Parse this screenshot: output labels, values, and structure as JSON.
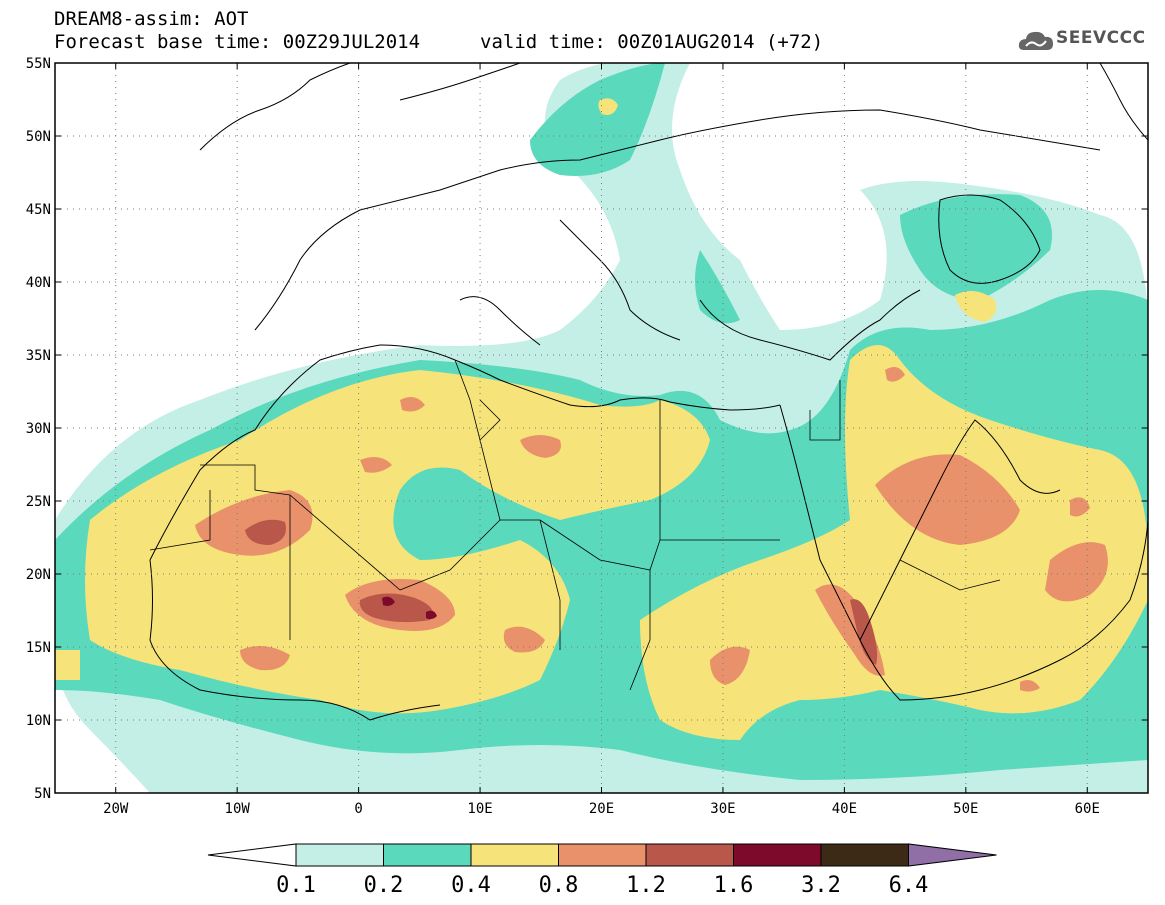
{
  "header": {
    "title": "DREAM8-assim: AOT",
    "base_time": "Forecast base time: 00Z29JUL2014",
    "valid_time": "valid time: 00Z01AUG2014 (+72)",
    "logo_text": "SEEVCCC"
  },
  "map": {
    "lat_ticks": [
      "55N",
      "50N",
      "45N",
      "40N",
      "35N",
      "30N",
      "25N",
      "20N",
      "15N",
      "10N",
      "5N"
    ],
    "lon_ticks": [
      "20W",
      "10W",
      "0",
      "10E",
      "20E",
      "30E",
      "40E",
      "50E",
      "60E"
    ],
    "lat_values": [
      55,
      50,
      45,
      40,
      35,
      30,
      25,
      20,
      15,
      10,
      5
    ],
    "lon_values": [
      -20,
      -10,
      0,
      10,
      20,
      30,
      40,
      50,
      60
    ],
    "lat_range": [
      5,
      55
    ],
    "lon_range": [
      -25,
      65
    ],
    "grid": "dotted"
  },
  "colorbar": {
    "labels": [
      "0.1",
      "0.2",
      "0.4",
      "0.8",
      "1.2",
      "1.6",
      "3.2",
      "6.4"
    ],
    "colors": [
      "#ffffff",
      "#c4efe6",
      "#5ad9bd",
      "#f6e47a",
      "#e8916a",
      "#b9574b",
      "#7d0a2a",
      "#3c2a17",
      "#8f6fa6"
    ]
  },
  "icons": {
    "logo": "cloud-logo-icon"
  }
}
